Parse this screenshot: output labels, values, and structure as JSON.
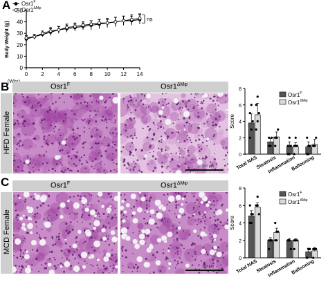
{
  "panels": {
    "A": "A",
    "B": "B",
    "C": "C"
  },
  "conditions": {
    "control": "Osr1",
    "control_sup": "F",
    "ko": "Osr1",
    "ko_sup": "ΔMφ"
  },
  "rows": {
    "B": "HFD Female",
    "C": "MCD Female"
  },
  "scale_labels": {
    "B": "300 µm",
    "C": "300 µm"
  },
  "colors": {
    "tissue_base": "#c88cc8",
    "tissue_dark": "#9a3f9e",
    "tissue_light": "#e4c3e2",
    "bar_control": "#555555",
    "bar_ko": "#d9d9d9"
  },
  "chart_data": [
    {
      "type": "line",
      "panel": "A",
      "ylabel": "Body Weight (g)",
      "xlabel": "(Wks)",
      "xlim": [
        0,
        14
      ],
      "ylim": [
        0,
        50
      ],
      "xticks": [
        "0",
        "2",
        "4",
        "6",
        "8",
        "10",
        "12",
        "14"
      ],
      "yticks": [
        "0",
        "10",
        "20",
        "30",
        "40",
        "50"
      ],
      "legend": "top-left",
      "annotation": "ns",
      "series": [
        {
          "name": "Osr1F",
          "legend_base": "Osr1",
          "legend_sup": "F",
          "marker": "filled-circle",
          "x": [
            0,
            1,
            2,
            3,
            4,
            5,
            6,
            7,
            8,
            9,
            10,
            11,
            12,
            13,
            14
          ],
          "y": [
            25,
            27,
            29,
            31,
            33,
            34,
            35,
            36,
            37,
            38,
            39,
            40,
            41,
            41,
            42
          ],
          "err": [
            2,
            2,
            2,
            3,
            3,
            3,
            3,
            3,
            4,
            4,
            4,
            4,
            4,
            4,
            4
          ]
        },
        {
          "name": "Osr1ΔMφ",
          "legend_base": "Osr1",
          "legend_sup": "ΔMφ",
          "marker": "open-circle",
          "x": [
            0,
            1,
            2,
            3,
            4,
            5,
            6,
            7,
            8,
            9,
            10,
            11,
            12,
            13,
            14
          ],
          "y": [
            26,
            27,
            30,
            32,
            33,
            35,
            36,
            37,
            38,
            39,
            39,
            40,
            41,
            42,
            43
          ],
          "err": [
            2,
            2,
            2,
            3,
            3,
            3,
            3,
            3,
            3,
            3,
            3,
            4,
            4,
            4,
            4
          ]
        }
      ]
    },
    {
      "type": "bar",
      "panel": "B",
      "ylabel": "Score",
      "ylim": [
        0,
        8
      ],
      "yticks": [
        "0",
        "2",
        "4",
        "6",
        "8"
      ],
      "categories": [
        "Total NAS",
        "Steatosis",
        "Inflammation",
        "Ballooning"
      ],
      "legend": "top-right",
      "series": [
        {
          "name": "Osr1F",
          "legend_base": "Osr1",
          "legend_sup": "F",
          "values": [
            3.8,
            1.5,
            0.9,
            0.9
          ],
          "err": [
            1.1,
            0.4,
            0.6,
            0.6
          ],
          "points": [
            [
              2,
              3,
              4,
              5,
              6
            ],
            [
              1,
              1,
              2,
              2,
              1
            ],
            [
              0,
              0,
              1,
              1,
              2
            ],
            [
              0,
              0,
              1,
              2,
              1
            ]
          ]
        },
        {
          "name": "Osr1ΔMφ",
          "legend_base": "Osr1",
          "legend_sup": "ΔMφ",
          "values": [
            4.8,
            2.1,
            0.9,
            1.2
          ],
          "err": [
            1.4,
            0.6,
            0.5,
            0.6
          ],
          "points": [
            [
              3,
              4,
              5,
              6,
              7
            ],
            [
              2,
              2,
              3,
              1,
              2
            ],
            [
              0,
              1,
              1,
              1,
              2
            ],
            [
              1,
              1,
              2,
              1,
              1
            ]
          ]
        }
      ]
    },
    {
      "type": "bar",
      "panel": "C",
      "ylabel": "Score",
      "ylim": [
        0,
        8
      ],
      "yticks": [
        "0",
        "2",
        "4",
        "6",
        "8"
      ],
      "categories": [
        "Total NAS",
        "Steatosis",
        "Inflammation",
        "Ballooning"
      ],
      "legend": "top-right",
      "series": [
        {
          "name": "Osr1F",
          "legend_base": "Osr1",
          "legend_sup": "F",
          "values": [
            4.8,
            2.0,
            2.0,
            0.7
          ],
          "err": [
            0.6,
            0.3,
            0.2,
            0.4
          ],
          "points": [
            [
              4,
              5,
              5,
              6,
              4
            ],
            [
              2,
              2,
              2,
              1,
              2
            ],
            [
              2,
              2,
              1,
              2,
              2
            ],
            [
              0,
              1,
              1,
              0,
              1
            ]
          ]
        },
        {
          "name": "Osr1ΔMφ",
          "legend_base": "Osr1",
          "legend_sup": "ΔMφ",
          "values": [
            5.8,
            2.9,
            2.0,
            0.8
          ],
          "err": [
            0.5,
            0.5,
            0.2,
            0.4
          ],
          "points": [
            [
              6,
              6,
              5,
              6,
              7
            ],
            [
              2,
              3,
              3,
              4,
              2
            ],
            [
              2,
              2,
              2,
              1,
              2
            ],
            [
              0,
              1,
              1,
              1,
              1
            ]
          ]
        }
      ]
    }
  ]
}
